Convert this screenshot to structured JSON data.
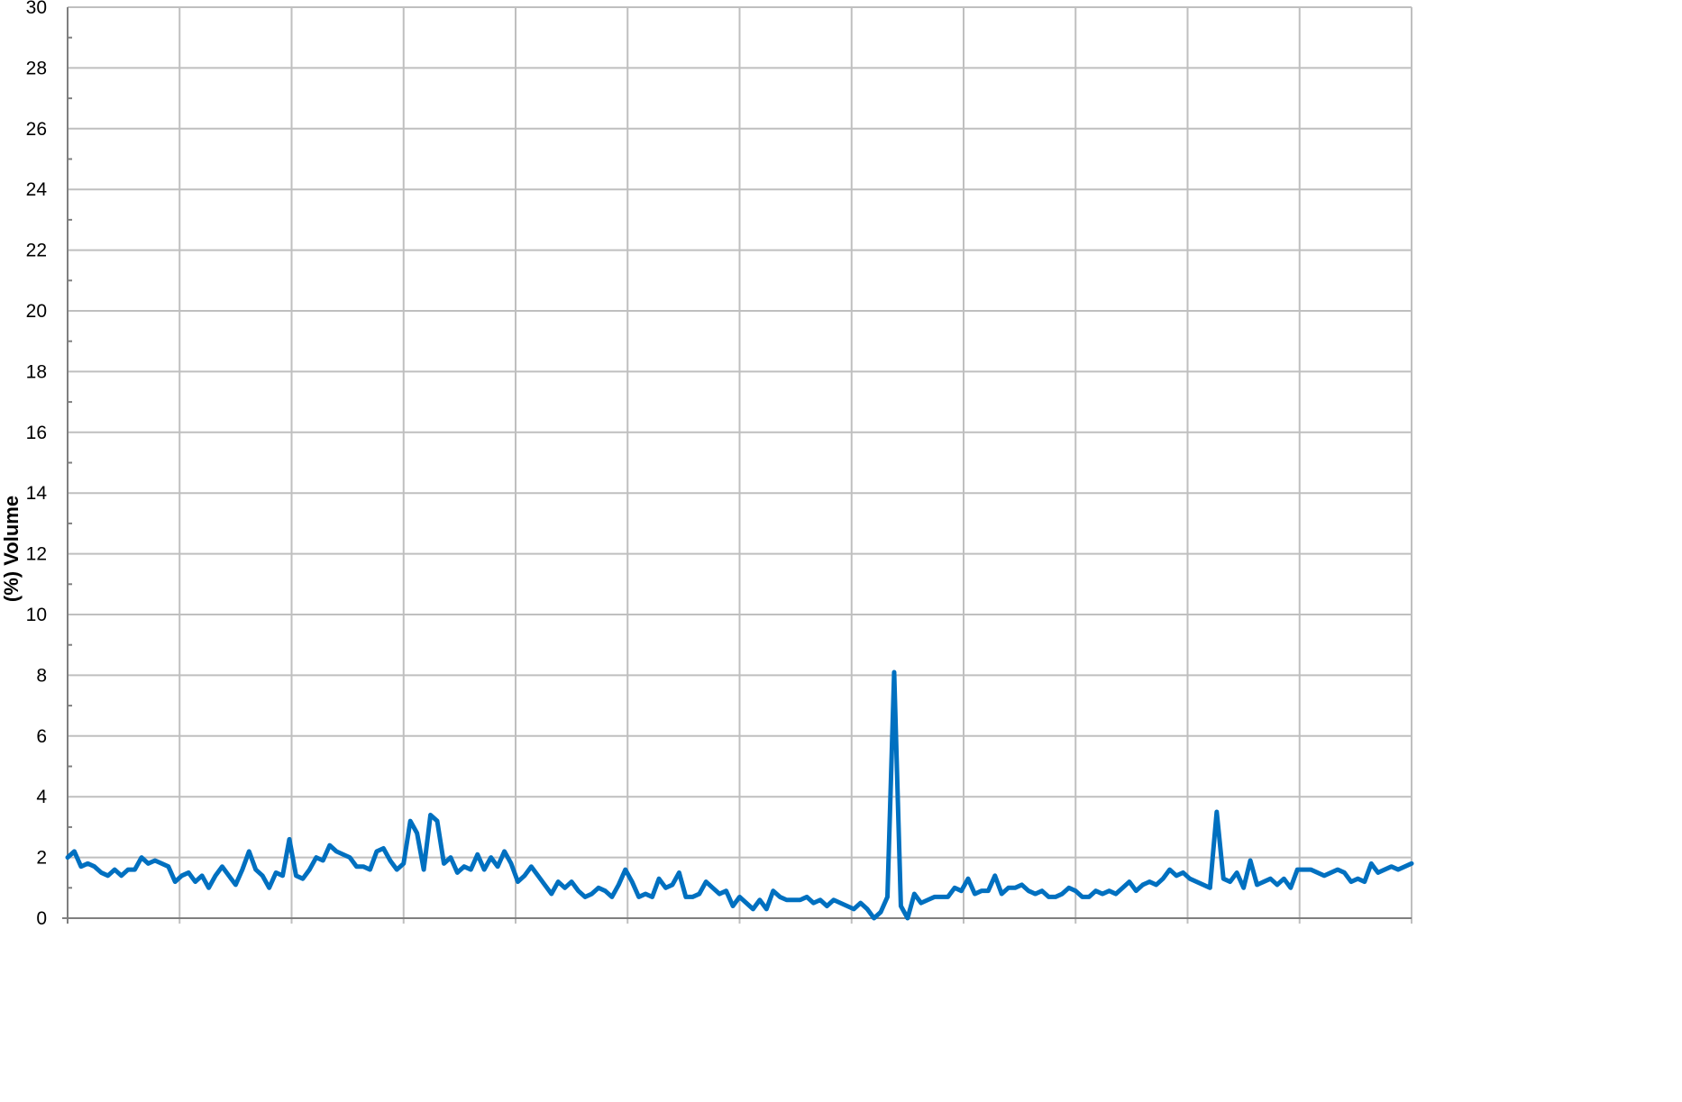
{
  "chart_data": {
    "type": "line",
    "title": "",
    "xlabel": "",
    "ylabel": "(%) Volume",
    "ylim": [
      0,
      30
    ],
    "yticks": [
      "0",
      "2",
      "4",
      "6",
      "8",
      "10",
      "12",
      "14",
      "16",
      "18",
      "20",
      "22",
      "24",
      "26",
      "28",
      "30"
    ],
    "x_gridlines": 12,
    "grid": true,
    "legend": "none",
    "colors": {
      "series": "#0070C0",
      "grid": "#BFBFBF",
      "axis": "#7F7F7F"
    },
    "series": [
      {
        "values": [
          2.0,
          2.2,
          1.7,
          1.8,
          1.7,
          1.5,
          1.4,
          1.6,
          1.4,
          1.6,
          1.6,
          2.0,
          1.8,
          1.9,
          1.8,
          1.7,
          1.2,
          1.4,
          1.5,
          1.2,
          1.4,
          1.0,
          1.4,
          1.7,
          1.4,
          1.1,
          1.6,
          2.2,
          1.6,
          1.4,
          1.0,
          1.5,
          1.4,
          2.6,
          1.4,
          1.3,
          1.6,
          2.0,
          1.9,
          2.4,
          2.2,
          2.1,
          2.0,
          1.7,
          1.7,
          1.6,
          2.2,
          2.3,
          1.9,
          1.6,
          1.8,
          3.2,
          2.8,
          1.6,
          3.4,
          3.2,
          1.8,
          2.0,
          1.5,
          1.7,
          1.6,
          2.1,
          1.6,
          2.0,
          1.7,
          2.2,
          1.8,
          1.2,
          1.4,
          1.7,
          1.4,
          1.1,
          0.8,
          1.2,
          1.0,
          1.2,
          0.9,
          0.7,
          0.8,
          1.0,
          0.9,
          0.7,
          1.1,
          1.6,
          1.2,
          0.7,
          0.8,
          0.7,
          1.3,
          1.0,
          1.1,
          1.5,
          0.7,
          0.7,
          0.8,
          1.2,
          1.0,
          0.8,
          0.9,
          0.4,
          0.7,
          0.5,
          0.3,
          0.6,
          0.3,
          0.9,
          0.7,
          0.6,
          0.6,
          0.6,
          0.7,
          0.5,
          0.6,
          0.4,
          0.6,
          0.5,
          0.4,
          0.3,
          0.5,
          0.3,
          0.0,
          0.2,
          0.7,
          8.1,
          0.4,
          0.0,
          0.8,
          0.5,
          0.6,
          0.7,
          0.7,
          0.7,
          1.0,
          0.9,
          1.3,
          0.8,
          0.9,
          0.9,
          1.4,
          0.8,
          1.0,
          1.0,
          1.1,
          0.9,
          0.8,
          0.9,
          0.7,
          0.7,
          0.8,
          1.0,
          0.9,
          0.7,
          0.7,
          0.9,
          0.8,
          0.9,
          0.8,
          1.0,
          1.2,
          0.9,
          1.1,
          1.2,
          1.1,
          1.3,
          1.6,
          1.4,
          1.5,
          1.3,
          1.2,
          1.1,
          1.0,
          3.5,
          1.3,
          1.2,
          1.5,
          1.0,
          1.9,
          1.1,
          1.2,
          1.3,
          1.1,
          1.3,
          1.0,
          1.6,
          1.6,
          1.6,
          1.5,
          1.4,
          1.5,
          1.6,
          1.5,
          1.2,
          1.3,
          1.2,
          1.8,
          1.5,
          1.6,
          1.7,
          1.6,
          1.7,
          1.8
        ]
      }
    ]
  }
}
